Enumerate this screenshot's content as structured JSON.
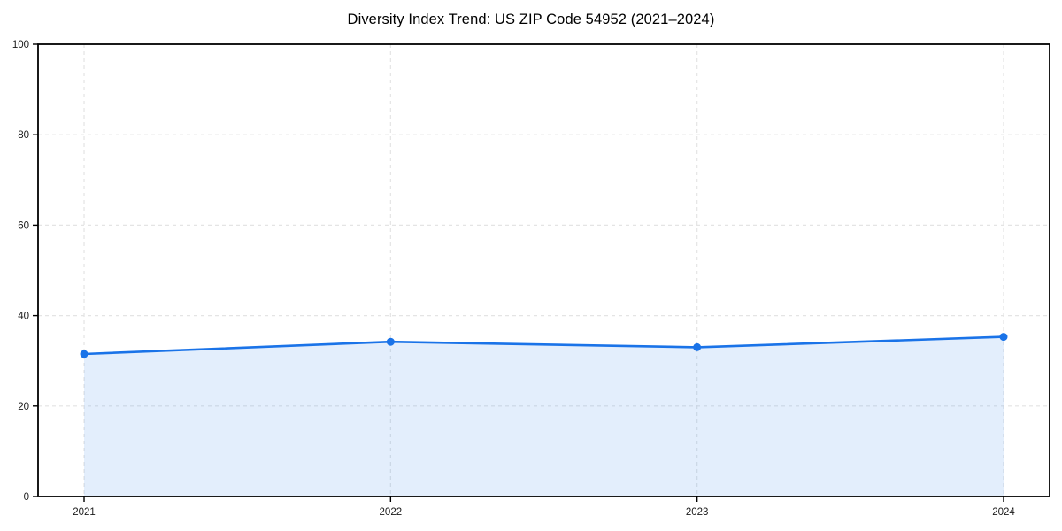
{
  "figure": {
    "background": "#ffffff"
  },
  "chart_data": {
    "type": "area",
    "title": "Diversity Index Trend: US ZIP Code 54952 (2021–2024)",
    "x": [
      "2021",
      "2022",
      "2023",
      "2024"
    ],
    "series": [
      {
        "name": "Diversity Index",
        "values": [
          31.5,
          34.2,
          33.0,
          35.3
        ]
      }
    ],
    "xlabel": "",
    "ylabel": "",
    "ylim": [
      0,
      100
    ],
    "yticks": [
      0,
      20,
      40,
      60,
      80,
      100
    ],
    "grid": "dashed, both axes",
    "legend_position": "none",
    "colors": {
      "line": "#1a73e8",
      "marker": "#1a73e8",
      "fill": "#1a73e8",
      "fill_opacity": 0.12,
      "grid": "#e4e4e4",
      "spine": "#000000",
      "tick_label": "#1a1a1a"
    }
  }
}
